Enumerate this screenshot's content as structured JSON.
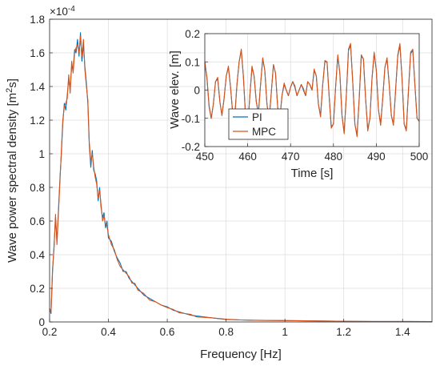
{
  "chart_data": [
    {
      "id": "main",
      "type": "line",
      "title": "",
      "xlabel": "Frequency [Hz]",
      "ylabel_main": "Wave power spectral density [m",
      "ylabel_sup": "2",
      "ylabel_tail": "s]",
      "exponent_label": "×10",
      "exponent_power": "-4",
      "xlim": [
        0.2,
        1.5
      ],
      "ylim": [
        0,
        1.8
      ],
      "xticks": [
        0.2,
        0.4,
        0.6,
        0.8,
        1,
        1.2,
        1.4
      ],
      "xtick_labels": [
        "0.2",
        "0.4",
        "0.6",
        "0.8",
        "1",
        "1.2",
        "1.4"
      ],
      "yticks": [
        0,
        0.2,
        0.4,
        0.6,
        0.8,
        1,
        1.2,
        1.4,
        1.6,
        1.8
      ],
      "ytick_labels": [
        "0",
        "0.2",
        "0.4",
        "0.6",
        "0.8",
        "1",
        "1.2",
        "1.4",
        "1.6",
        "1.8"
      ],
      "grid": true,
      "x": [
        0.2,
        0.205,
        0.21,
        0.215,
        0.22,
        0.225,
        0.23,
        0.235,
        0.24,
        0.245,
        0.25,
        0.255,
        0.26,
        0.265,
        0.27,
        0.275,
        0.28,
        0.285,
        0.29,
        0.295,
        0.3,
        0.305,
        0.31,
        0.315,
        0.32,
        0.325,
        0.33,
        0.335,
        0.34,
        0.345,
        0.35,
        0.355,
        0.36,
        0.365,
        0.37,
        0.375,
        0.38,
        0.385,
        0.39,
        0.395,
        0.4,
        0.41,
        0.42,
        0.43,
        0.44,
        0.45,
        0.46,
        0.47,
        0.48,
        0.49,
        0.5,
        0.52,
        0.54,
        0.56,
        0.58,
        0.6,
        0.62,
        0.64,
        0.66,
        0.68,
        0.7,
        0.75,
        0.8,
        0.85,
        0.9,
        1.0,
        1.1,
        1.2,
        1.3,
        1.4,
        1.5
      ],
      "series": [
        {
          "name": "PI",
          "color": "#0072bd",
          "values": [
            0.08,
            0.05,
            0.3,
            0.45,
            0.62,
            0.48,
            0.66,
            0.85,
            1.0,
            1.18,
            1.3,
            1.26,
            1.35,
            1.45,
            1.38,
            1.52,
            1.5,
            1.62,
            1.6,
            1.68,
            1.58,
            1.72,
            1.55,
            1.65,
            1.52,
            1.42,
            1.3,
            1.05,
            0.92,
            1.02,
            0.9,
            0.88,
            0.84,
            0.72,
            0.8,
            0.68,
            0.62,
            0.65,
            0.56,
            0.6,
            0.5,
            0.48,
            0.42,
            0.38,
            0.35,
            0.3,
            0.3,
            0.26,
            0.24,
            0.22,
            0.2,
            0.16,
            0.14,
            0.12,
            0.1,
            0.09,
            0.07,
            0.06,
            0.05,
            0.04,
            0.035,
            0.025,
            0.015,
            0.012,
            0.01,
            0.008,
            0.006,
            0.004,
            0.003,
            0.003,
            0.002
          ]
        },
        {
          "name": "MPC",
          "color": "#d95319",
          "values": [
            0.08,
            0.06,
            0.32,
            0.43,
            0.64,
            0.46,
            0.64,
            0.83,
            1.02,
            1.2,
            1.28,
            1.3,
            1.33,
            1.47,
            1.36,
            1.55,
            1.48,
            1.6,
            1.63,
            1.65,
            1.6,
            1.7,
            1.58,
            1.68,
            1.5,
            1.4,
            1.32,
            1.07,
            0.95,
            1.0,
            0.92,
            0.86,
            0.82,
            0.74,
            0.78,
            0.7,
            0.6,
            0.63,
            0.58,
            0.57,
            0.52,
            0.46,
            0.43,
            0.37,
            0.33,
            0.31,
            0.29,
            0.27,
            0.23,
            0.23,
            0.19,
            0.17,
            0.13,
            0.12,
            0.1,
            0.085,
            0.075,
            0.055,
            0.05,
            0.045,
            0.03,
            0.025,
            0.016,
            0.012,
            0.01,
            0.008,
            0.006,
            0.004,
            0.003,
            0.003,
            0.002
          ]
        }
      ]
    },
    {
      "id": "inset",
      "type": "line",
      "title": "",
      "xlabel": "Time [s]",
      "ylabel": "Wave elev. [m]",
      "xlim": [
        450,
        500
      ],
      "ylim": [
        -0.2,
        0.2
      ],
      "xticks": [
        450,
        460,
        470,
        480,
        490,
        500
      ],
      "xtick_labels": [
        "450",
        "460",
        "470",
        "480",
        "490",
        "500"
      ],
      "yticks": [
        -0.2,
        -0.1,
        0,
        0.1,
        0.2
      ],
      "ytick_labels": [
        "-0.2",
        "-0.1",
        "0",
        "0.1",
        "0.2"
      ],
      "grid": true,
      "legend": {
        "position": "bottom-left",
        "entries": [
          "PI",
          "MPC"
        ]
      },
      "x": [
        450,
        450.5,
        451,
        451.5,
        452,
        452.5,
        453,
        453.5,
        454,
        454.5,
        455,
        455.5,
        456,
        456.5,
        457,
        457.5,
        458,
        458.5,
        459,
        459.5,
        460,
        460.5,
        461,
        461.5,
        462,
        462.5,
        463,
        463.5,
        464,
        464.5,
        465,
        465.5,
        466,
        466.5,
        467,
        467.5,
        468,
        468.5,
        469,
        469.5,
        470,
        470.5,
        471,
        471.5,
        472,
        472.5,
        473,
        473.5,
        474,
        474.5,
        475,
        475.5,
        476,
        476.5,
        477,
        477.5,
        478,
        478.5,
        479,
        479.5,
        480,
        480.5,
        481,
        481.5,
        482,
        482.5,
        483,
        483.5,
        484,
        484.5,
        485,
        485.5,
        486,
        486.5,
        487,
        487.5,
        488,
        488.5,
        489,
        489.5,
        490,
        490.5,
        491,
        491.5,
        492,
        492.5,
        493,
        493.5,
        494,
        494.5,
        495,
        495.5,
        496,
        496.5,
        497,
        497.5,
        498,
        498.5,
        499,
        499.5,
        500
      ],
      "series": [
        {
          "name": "PI",
          "color": "#0072bd",
          "values": [
            0.1,
            0.04,
            -0.06,
            -0.1,
            -0.05,
            0.03,
            0.04,
            -0.04,
            -0.09,
            -0.03,
            0.05,
            0.08,
            0.01,
            -0.08,
            -0.09,
            0.02,
            0.1,
            0.14,
            0.05,
            -0.09,
            -0.13,
            -0.02,
            0.08,
            0.05,
            -0.04,
            -0.08,
            0.02,
            0.11,
            0.07,
            -0.05,
            -0.1,
            -0.01,
            0.09,
            0.06,
            -0.06,
            -0.1,
            -0.02,
            0.02,
            0.0,
            -0.02,
            0.01,
            0.03,
            0.01,
            -0.02,
            0.0,
            0.02,
            0.0,
            -0.02,
            0.03,
            0.02,
            0.0,
            0.07,
            0.05,
            -0.05,
            -0.09,
            0.02,
            0.1,
            0.1,
            -0.02,
            -0.13,
            -0.12,
            0.01,
            0.12,
            0.06,
            -0.09,
            -0.15,
            -0.02,
            0.14,
            0.16,
            0.03,
            -0.12,
            -0.16,
            -0.03,
            0.12,
            0.11,
            -0.03,
            -0.14,
            -0.1,
            0.04,
            0.13,
            0.07,
            -0.07,
            -0.12,
            -0.03,
            0.08,
            0.11,
            0.02,
            -0.09,
            -0.12,
            0.0,
            0.12,
            0.16,
            0.04,
            -0.12,
            -0.14,
            0.0,
            0.13,
            0.14,
            0.02,
            -0.1,
            -0.11
          ]
        },
        {
          "name": "MPC",
          "color": "#d95319",
          "values": [
            0.1,
            0.045,
            -0.055,
            -0.1,
            -0.05,
            0.03,
            0.045,
            -0.04,
            -0.09,
            -0.03,
            0.05,
            0.085,
            0.01,
            -0.08,
            -0.095,
            0.02,
            0.1,
            0.145,
            0.05,
            -0.09,
            -0.135,
            -0.02,
            0.085,
            0.05,
            -0.04,
            -0.085,
            0.02,
            0.115,
            0.07,
            -0.05,
            -0.105,
            -0.01,
            0.09,
            0.06,
            -0.06,
            -0.1,
            -0.02,
            0.025,
            0.0,
            -0.02,
            0.01,
            0.03,
            0.015,
            -0.02,
            0.0,
            0.02,
            0.005,
            -0.02,
            0.03,
            0.02,
            0.0,
            0.075,
            0.05,
            -0.05,
            -0.095,
            0.02,
            0.105,
            0.1,
            -0.02,
            -0.135,
            -0.12,
            0.01,
            0.125,
            0.06,
            -0.09,
            -0.155,
            -0.02,
            0.145,
            0.165,
            0.03,
            -0.12,
            -0.165,
            -0.03,
            0.125,
            0.11,
            -0.03,
            -0.145,
            -0.1,
            0.04,
            0.135,
            0.07,
            -0.07,
            -0.125,
            -0.03,
            0.08,
            0.115,
            0.02,
            -0.09,
            -0.125,
            0.0,
            0.125,
            0.165,
            0.04,
            -0.12,
            -0.145,
            0.0,
            0.135,
            0.145,
            0.02,
            -0.1,
            -0.11
          ]
        }
      ]
    }
  ]
}
